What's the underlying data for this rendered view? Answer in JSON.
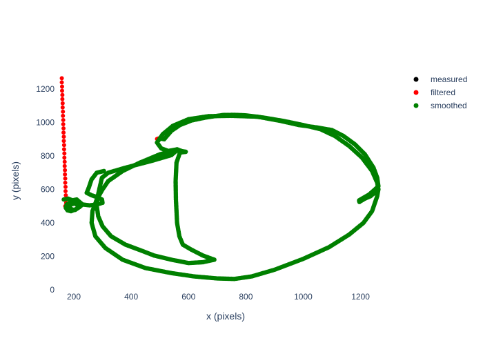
{
  "chart_data": {
    "type": "scatter",
    "title": "",
    "xlabel": "x (pixels)",
    "ylabel": "y (pixels)",
    "xlim": [
      135,
      1290
    ],
    "ylim": [
      0,
      1320
    ],
    "x_ticks": [
      200,
      400,
      600,
      800,
      1000,
      1200
    ],
    "y_ticks": [
      0,
      200,
      400,
      600,
      800,
      1000,
      1200
    ],
    "grid": false,
    "legend_position": "top-right",
    "series": [
      {
        "name": "measured",
        "color": "#000000",
        "points": []
      },
      {
        "name": "filtered",
        "color": "#ff0000",
        "points": [
          [
            158,
            1265
          ],
          [
            158,
            1240
          ],
          [
            159,
            1215
          ],
          [
            159,
            1190
          ],
          [
            160,
            1165
          ],
          [
            160,
            1140
          ],
          [
            161,
            1115
          ],
          [
            161,
            1090
          ],
          [
            162,
            1065
          ],
          [
            162,
            1040
          ],
          [
            163,
            1015
          ],
          [
            163,
            990
          ],
          [
            164,
            965
          ],
          [
            164,
            940
          ],
          [
            165,
            915
          ],
          [
            165,
            890
          ],
          [
            166,
            865
          ],
          [
            166,
            840
          ],
          [
            167,
            815
          ],
          [
            167,
            790
          ],
          [
            168,
            765
          ],
          [
            168,
            740
          ],
          [
            169,
            715
          ],
          [
            169,
            690
          ],
          [
            170,
            665
          ],
          [
            170,
            640
          ],
          [
            171,
            615
          ],
          [
            171,
            590
          ],
          [
            172,
            565
          ],
          [
            172,
            540
          ],
          [
            173,
            520
          ],
          [
            170,
            500
          ],
          [
            490,
            902
          ],
          [
            495,
            905
          ],
          [
            500,
            905
          ]
        ]
      },
      {
        "name": "smoothed",
        "color": "#008000",
        "paths": [
          [
            [
              500,
              905
            ],
            [
              515,
              900
            ],
            [
              540,
              950
            ],
            [
              570,
              985
            ],
            [
              610,
              1012
            ],
            [
              660,
              1030
            ],
            [
              720,
              1045
            ],
            [
              760,
              1046
            ],
            [
              800,
              1043
            ],
            [
              860,
              1030
            ],
            [
              930,
              1010
            ],
            [
              1000,
              985
            ],
            [
              1060,
              960
            ],
            [
              1110,
              920
            ],
            [
              1160,
              860
            ],
            [
              1205,
              790
            ],
            [
              1240,
              710
            ],
            [
              1258,
              640
            ],
            [
              1262,
              600
            ],
            [
              1252,
              580
            ],
            [
              1232,
              565
            ],
            [
              1210,
              545
            ],
            [
              1195,
              530
            ]
          ],
          [
            [
              1262,
              600
            ],
            [
              1258,
              560
            ],
            [
              1240,
              470
            ],
            [
              1210,
              400
            ],
            [
              1160,
              330
            ],
            [
              1090,
              255
            ],
            [
              1000,
              185
            ],
            [
              900,
              120
            ],
            [
              820,
              80
            ],
            [
              760,
              65
            ],
            [
              700,
              68
            ],
            [
              620,
              80
            ],
            [
              540,
              100
            ],
            [
              450,
              130
            ],
            [
              370,
              180
            ],
            [
              310,
              250
            ],
            [
              275,
              320
            ],
            [
              262,
              400
            ],
            [
              265,
              470
            ],
            [
              280,
              540
            ],
            [
              300,
              600
            ],
            [
              320,
              650
            ],
            [
              370,
              710
            ],
            [
              430,
              760
            ],
            [
              500,
              810
            ],
            [
              545,
              832
            ],
            [
              575,
              830
            ],
            [
              590,
              825
            ]
          ],
          [
            [
              590,
              825
            ],
            [
              570,
              820
            ],
            [
              558,
              760
            ],
            [
              555,
              650
            ],
            [
              556,
              540
            ],
            [
              560,
              400
            ],
            [
              568,
              320
            ],
            [
              580,
              270
            ],
            [
              610,
              240
            ],
            [
              650,
              205
            ],
            [
              690,
              180
            ],
            [
              650,
              165
            ],
            [
              600,
              160
            ],
            [
              540,
              180
            ],
            [
              480,
              205
            ],
            [
              430,
              238
            ],
            [
              380,
              270
            ],
            [
              330,
              320
            ],
            [
              300,
              380
            ],
            [
              285,
              440
            ],
            [
              280,
              500
            ],
            [
              282,
              550
            ],
            [
              290,
              610
            ],
            [
              298,
              670
            ],
            [
              320,
              700
            ],
            [
              380,
              730
            ],
            [
              470,
              770
            ],
            [
              540,
              805
            ],
            [
              560,
              835
            ],
            [
              575,
              830
            ]
          ],
          [
            [
              575,
              830
            ],
            [
              560,
              840
            ],
            [
              530,
              830
            ],
            [
              505,
              845
            ],
            [
              490,
              880
            ],
            [
              510,
              930
            ],
            [
              545,
              980
            ],
            [
              600,
              1020
            ],
            [
              670,
              1038
            ],
            [
              750,
              1040
            ],
            [
              840,
              1035
            ],
            [
              920,
              1010
            ],
            [
              985,
              985
            ],
            [
              1050,
              970
            ],
            [
              1100,
              955
            ],
            [
              1140,
              920
            ],
            [
              1180,
              870
            ],
            [
              1215,
              810
            ],
            [
              1245,
              730
            ],
            [
              1258,
              670
            ],
            [
              1262,
              620
            ]
          ],
          [
            [
              1262,
              620
            ],
            [
              1250,
              600
            ],
            [
              1230,
              570
            ],
            [
              1205,
              545
            ],
            [
              1195,
              535
            ]
          ],
          [
            [
              165,
              540
            ],
            [
              180,
              545
            ],
            [
              195,
              535
            ],
            [
              210,
              540
            ],
            [
              220,
              525
            ],
            [
              230,
              510
            ],
            [
              220,
              495
            ],
            [
              205,
              480
            ],
            [
              190,
              470
            ],
            [
              178,
              475
            ],
            [
              172,
              490
            ],
            [
              175,
              510
            ],
            [
              185,
              520
            ],
            [
              200,
              520
            ],
            [
              212,
              508
            ],
            [
              215,
              490
            ],
            [
              205,
              478
            ],
            [
              192,
              480
            ],
            [
              185,
              495
            ],
            [
              188,
              510
            ],
            [
              200,
              515
            ],
            [
              230,
              510
            ],
            [
              255,
              505
            ],
            [
              280,
              510
            ],
            [
              300,
              520
            ],
            [
              298,
              540
            ],
            [
              280,
              555
            ],
            [
              262,
              565
            ],
            [
              245,
              580
            ]
          ],
          [
            [
              245,
              580
            ],
            [
              252,
              610
            ],
            [
              262,
              660
            ],
            [
              280,
              700
            ],
            [
              305,
              710
            ]
          ],
          [
            [
              1262,
              600
            ],
            [
              1235,
              560
            ],
            [
              1215,
              545
            ],
            [
              1200,
              530
            ],
            [
              1196,
              525
            ]
          ]
        ]
      }
    ]
  }
}
